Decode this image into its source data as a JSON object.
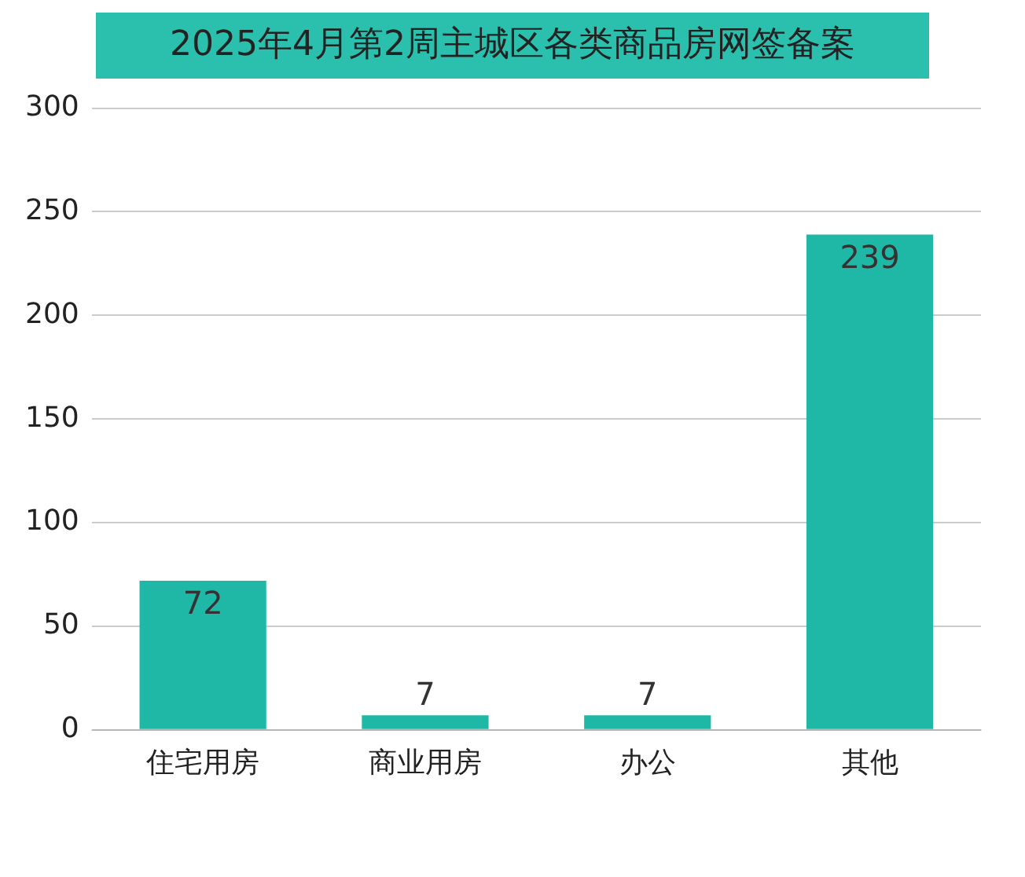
{
  "chart_data": {
    "type": "bar",
    "title": "2025年4月第2周主城区各类商品房网签备案",
    "categories": [
      "住宅用房",
      "商业用房",
      "办公",
      "其他"
    ],
    "values": [
      72,
      7,
      7,
      239
    ],
    "color": "#1fb8a6",
    "ylim": [
      0,
      300
    ],
    "yticks": [
      0,
      50,
      100,
      150,
      200,
      250,
      300
    ],
    "grid": "y",
    "data_labels": true
  }
}
